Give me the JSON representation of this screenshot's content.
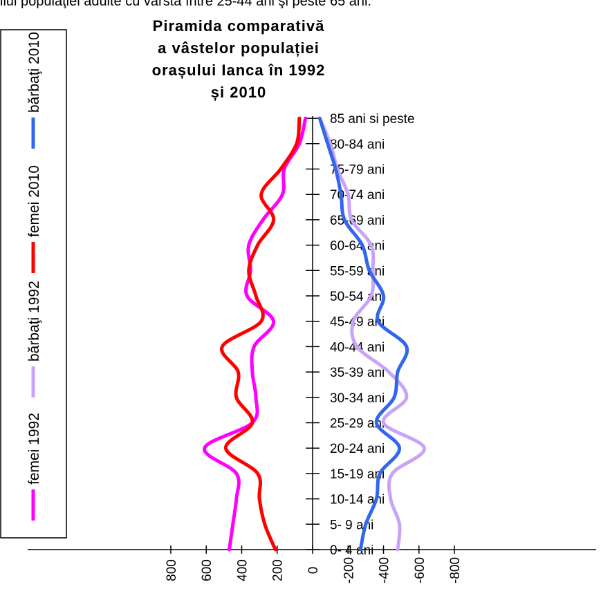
{
  "caption": "ilul populaţiei adulte cu vârsta între 25-44 ani şi peste 65 ani.",
  "chart_data": {
    "type": "line",
    "title": [
      "Piramida comparativă",
      "a vâstelor populației",
      "orașului Ianca în 1992",
      "și 2010"
    ],
    "categories": [
      "0- 4 ani",
      "5- 9 ani",
      "10-14 ani",
      "15-19 ani",
      "20-24 ani",
      "25-29 ani",
      "30-34 ani",
      "35-39 ani",
      "40-44 ani",
      "45-49 ani",
      "50-54 ani",
      "55-59 ani",
      "60-64 ani",
      "65-69 ani",
      "70-74 ani",
      "75-79 ani",
      "80-84 ani",
      "85 ani si peste"
    ],
    "x_tick_labels": [
      "800",
      "600",
      "400",
      "200",
      "0",
      "-200",
      "-400",
      "-600",
      "-800"
    ],
    "x_ticks": [
      800,
      600,
      400,
      200,
      0,
      -200,
      -400,
      -600,
      -800
    ],
    "xlim": [
      800,
      -800
    ],
    "legend_position": "left",
    "series": [
      {
        "name": "femei 1992",
        "color": "#ff00ff",
        "values": [
          470,
          450,
          430,
          430,
          610,
          340,
          320,
          340,
          330,
          220,
          370,
          350,
          360,
          280,
          170,
          160,
          75,
          40
        ]
      },
      {
        "name": "bărbaţi 1992",
        "color": "#c8a4f8",
        "values": [
          -480,
          -490,
          -440,
          -450,
          -630,
          -400,
          -530,
          -430,
          -250,
          -230,
          -330,
          -340,
          -330,
          -220,
          -200,
          -140,
          -100,
          -40
        ]
      },
      {
        "name": "femei 2010",
        "color": "#ff0000",
        "values": [
          210,
          270,
          300,
          310,
          490,
          340,
          430,
          420,
          510,
          290,
          320,
          360,
          310,
          220,
          290,
          180,
          90,
          75
        ]
      },
      {
        "name": "bărbaţi 2010",
        "color": "#3366ee",
        "values": [
          -270,
          -300,
          -360,
          -380,
          -490,
          -360,
          -460,
          -480,
          -530,
          -370,
          -400,
          -320,
          -280,
          -180,
          -160,
          -130,
          -85,
          -40
        ]
      }
    ]
  }
}
